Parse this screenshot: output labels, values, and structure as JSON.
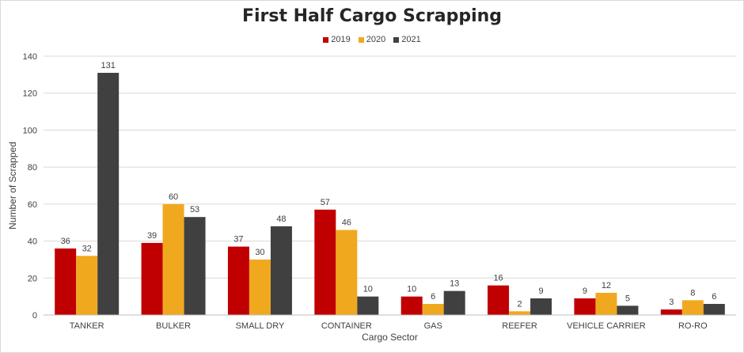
{
  "chart_data": {
    "type": "bar",
    "title": "First Half Cargo Scrapping",
    "xlabel": "Cargo Sector",
    "ylabel": "Number of Scrapped",
    "ylim": [
      0,
      140
    ],
    "yticks": [
      0,
      20,
      40,
      60,
      80,
      100,
      120,
      140
    ],
    "grid": true,
    "legend_position": "top-center",
    "categories": [
      "TANKER",
      "BULKER",
      "SMALL DRY",
      "CONTAINER",
      "GAS",
      "REEFER",
      "VEHICLE CARRIER",
      "RO-RO"
    ],
    "series": [
      {
        "name": "2019",
        "color": "#c00000",
        "values": [
          36,
          39,
          37,
          57,
          10,
          16,
          9,
          3
        ]
      },
      {
        "name": "2020",
        "color": "#f0a91e",
        "values": [
          32,
          60,
          30,
          46,
          6,
          2,
          12,
          8
        ]
      },
      {
        "name": "2021",
        "color": "#404040",
        "values": [
          131,
          53,
          48,
          10,
          13,
          9,
          5,
          6
        ]
      }
    ]
  }
}
